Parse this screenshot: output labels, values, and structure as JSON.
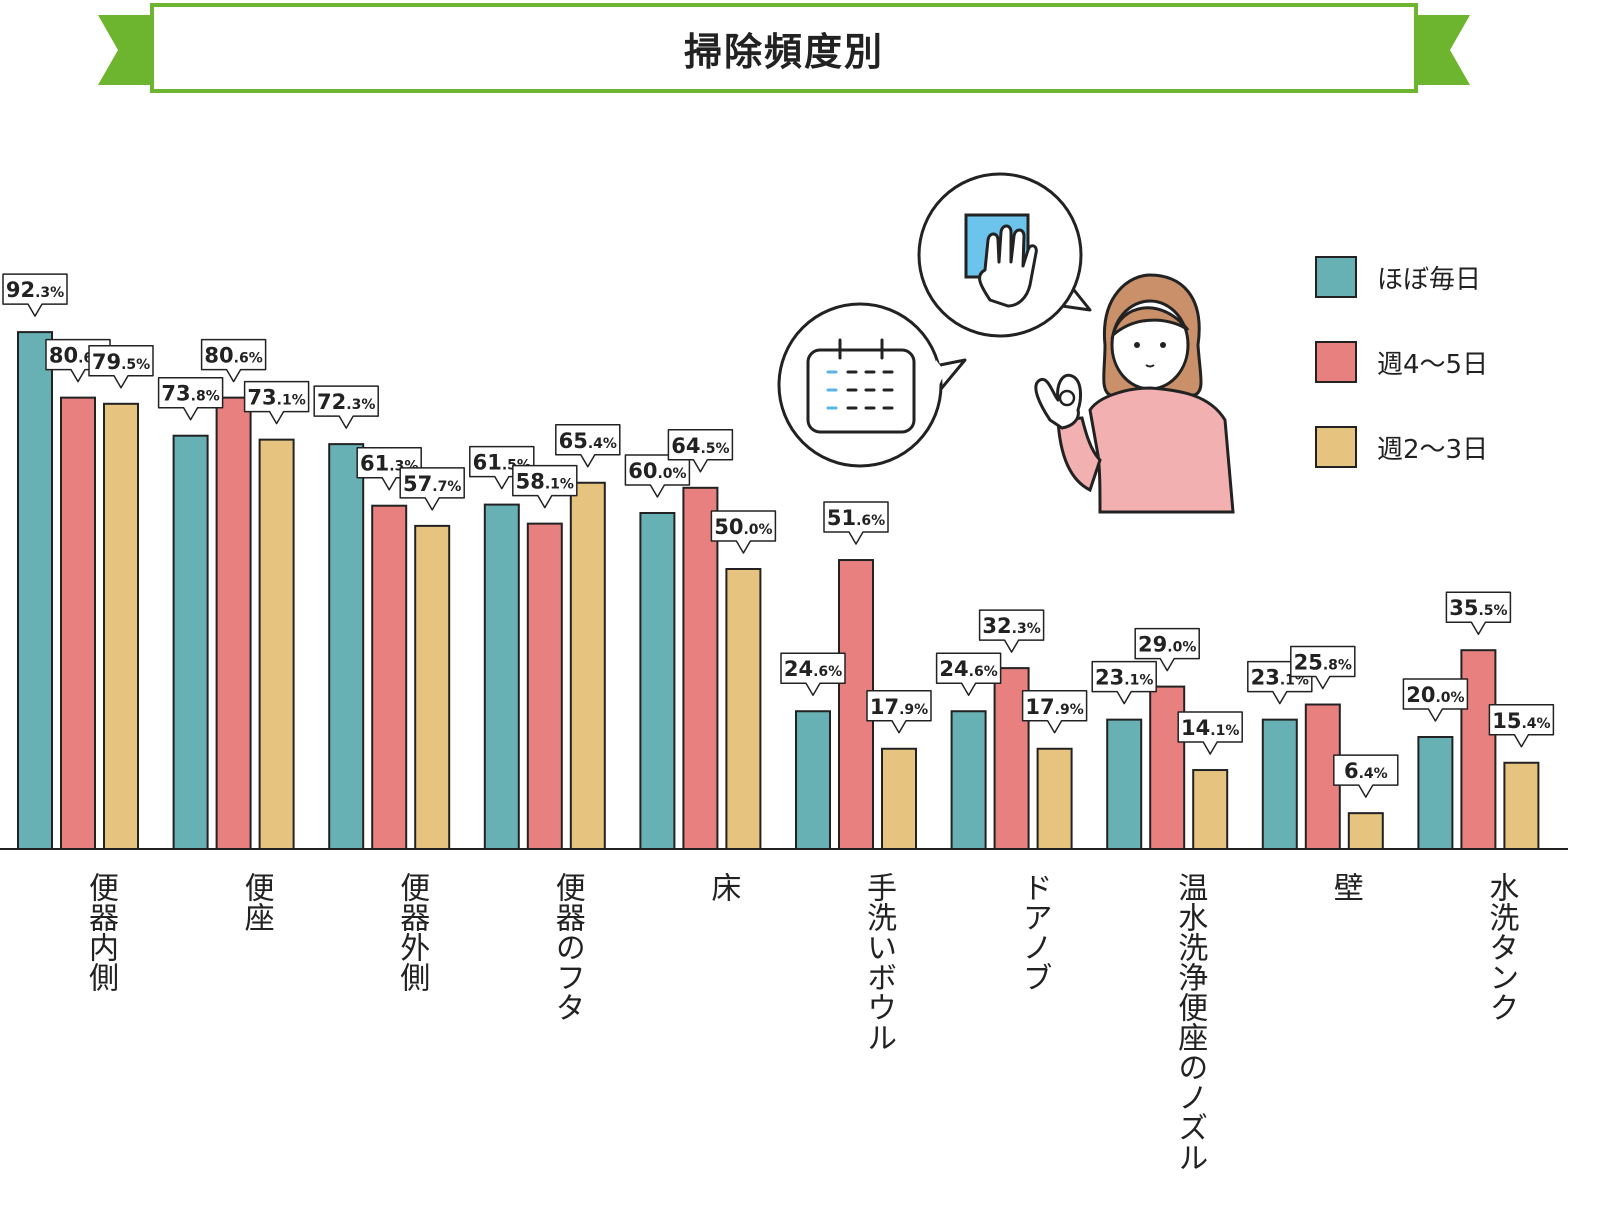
{
  "chart_data": {
    "type": "bar",
    "title": "掃除頻度別",
    "categories": [
      "便器内側",
      "便座",
      "便器外側",
      "便器のフタ",
      "床",
      "手洗いボウル",
      "ドアノブ",
      "温水洗浄便座のノズル",
      "壁",
      "水洗タンク"
    ],
    "series": [
      {
        "name": "ほぼ毎日",
        "color": "#67b0b3",
        "values": [
          92.3,
          73.8,
          72.3,
          61.5,
          60.0,
          24.6,
          24.6,
          23.1,
          23.1,
          20.0
        ]
      },
      {
        "name": "週4〜5日",
        "color": "#e88080",
        "values": [
          80.6,
          80.6,
          61.3,
          58.1,
          64.5,
          51.6,
          32.3,
          29.0,
          25.8,
          35.5
        ]
      },
      {
        "name": "週2〜3日",
        "color": "#e6c47f",
        "values": [
          79.5,
          73.1,
          57.7,
          65.4,
          50.0,
          17.9,
          17.9,
          14.1,
          6.4,
          15.4
        ]
      }
    ],
    "unit": "%",
    "ylim": [
      0,
      100
    ],
    "grid": false,
    "legend_position": "top-right",
    "accent_color": "#6db52f"
  },
  "illustration": {
    "icons": [
      "calendar-icon",
      "hand-cloth-icon",
      "woman-ok-gesture-icon"
    ]
  }
}
